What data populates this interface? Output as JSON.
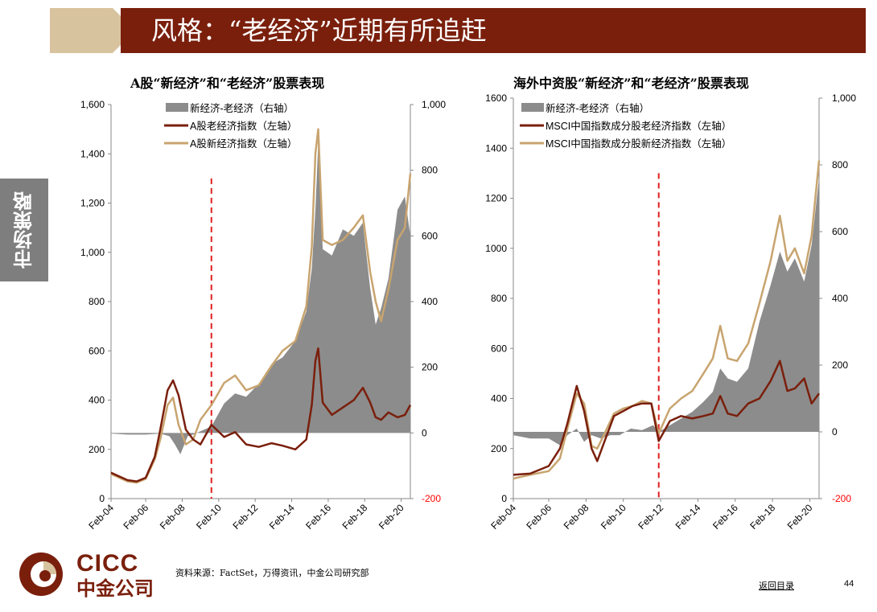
{
  "header": {
    "title": "风格：“老经济”近期有所追赶"
  },
  "sidebar": {
    "label": "市场策略"
  },
  "charts": [
    {
      "title": "A股“新经济”和“老经济”股票表现",
      "legend": [
        "新经济-老经济（右轴）",
        "A股老经济指数（左轴）",
        "A股新经济指数（左轴）"
      ],
      "left_ticks": [
        "1,600",
        "1,400",
        "1,200",
        "1,000",
        "800",
        "600",
        "400",
        "200",
        "0"
      ],
      "right_ticks": [
        "1,000",
        "800",
        "600",
        "400",
        "200",
        "0",
        "-200"
      ],
      "x_ticks": [
        "Feb-04",
        "Feb-06",
        "Feb-08",
        "Feb-10",
        "Feb-12",
        "Feb-14",
        "Feb-16",
        "Feb-18",
        "Feb-20"
      ]
    },
    {
      "title": "海外中资股“新经济”和“老经济”股票表现",
      "legend": [
        "新经济-老经济（右轴）",
        "MSCI中国指数成分股老经济指数（左轴）",
        "MSCI中国指数成分股新经济指数（左轴）"
      ],
      "left_ticks": [
        "1600",
        "1400",
        "1200",
        "1000",
        "800",
        "600",
        "400",
        "200",
        "0"
      ],
      "right_ticks": [
        "1,000",
        "800",
        "600",
        "400",
        "200",
        "0",
        "-200"
      ],
      "x_ticks": [
        "Feb-04",
        "Feb-06",
        "Feb-08",
        "Feb-10",
        "Feb-12",
        "Feb-14",
        "Feb-16",
        "Feb-18",
        "Feb-20"
      ]
    }
  ],
  "chart_data": [
    {
      "type": "line",
      "title": "A股“新经济”和“老经济”股票表现",
      "x_range": [
        2004.1,
        2020.5
      ],
      "ylim_left": [
        0,
        1600
      ],
      "ylim_right": [
        -200,
        1000
      ],
      "vline_x": 2009.6,
      "series": [
        {
          "name": "新经济-老经济（右轴）",
          "axis": "right",
          "kind": "area",
          "x": [
            2004.1,
            2005.0,
            2006.0,
            2006.8,
            2007.3,
            2007.6,
            2007.9,
            2008.3,
            2008.6,
            2009.0,
            2009.6,
            2010.3,
            2010.9,
            2011.5,
            2012.2,
            2012.9,
            2013.5,
            2014.2,
            2014.8,
            2015.1,
            2015.3,
            2015.45,
            2015.7,
            2016.2,
            2016.8,
            2017.4,
            2017.9,
            2018.3,
            2018.6,
            2018.9,
            2019.3,
            2019.8,
            2020.2,
            2020.5
          ],
          "y": [
            -2,
            -5,
            -5,
            -2,
            -10,
            -35,
            -65,
            -10,
            -5,
            5,
            20,
            90,
            120,
            110,
            150,
            210,
            230,
            280,
            370,
            500,
            680,
            880,
            560,
            540,
            620,
            600,
            640,
            440,
            330,
            380,
            470,
            680,
            720,
            600
          ]
        },
        {
          "name": "A股老经济指数（左轴）",
          "axis": "left",
          "kind": "line",
          "x": [
            2004.1,
            2005.0,
            2005.5,
            2006.0,
            2006.5,
            2006.8,
            2007.2,
            2007.5,
            2007.8,
            2008.2,
            2008.6,
            2009.0,
            2009.6,
            2010.3,
            2010.9,
            2011.5,
            2012.2,
            2012.9,
            2013.5,
            2014.2,
            2014.8,
            2015.1,
            2015.3,
            2015.45,
            2015.7,
            2016.2,
            2016.8,
            2017.4,
            2017.9,
            2018.3,
            2018.6,
            2018.9,
            2019.3,
            2019.8,
            2020.2,
            2020.5
          ],
          "y": [
            105,
            75,
            70,
            85,
            170,
            280,
            440,
            480,
            420,
            280,
            240,
            220,
            300,
            250,
            270,
            220,
            210,
            225,
            215,
            200,
            240,
            380,
            560,
            610,
            390,
            340,
            370,
            400,
            450,
            390,
            330,
            320,
            350,
            330,
            340,
            380
          ]
        },
        {
          "name": "A股新经济指数（左轴）",
          "axis": "left",
          "kind": "line",
          "x": [
            2004.1,
            2005.0,
            2005.5,
            2006.0,
            2006.5,
            2006.8,
            2007.2,
            2007.5,
            2007.8,
            2008.2,
            2008.6,
            2009.0,
            2009.6,
            2010.3,
            2010.9,
            2011.5,
            2012.2,
            2012.9,
            2013.5,
            2014.2,
            2014.8,
            2015.1,
            2015.3,
            2015.45,
            2015.7,
            2016.2,
            2016.8,
            2017.4,
            2017.9,
            2018.3,
            2018.6,
            2018.9,
            2019.3,
            2019.8,
            2020.2,
            2020.5
          ],
          "y": [
            100,
            70,
            65,
            80,
            160,
            240,
            380,
            410,
            300,
            220,
            240,
            320,
            380,
            470,
            500,
            440,
            460,
            540,
            600,
            640,
            780,
            1020,
            1400,
            1500,
            1050,
            1030,
            1050,
            1100,
            1150,
            920,
            800,
            720,
            850,
            1050,
            1100,
            1320
          ]
        }
      ]
    },
    {
      "type": "line",
      "title": "海外中资股“新经济”和“老经济”股票表现",
      "x_range": [
        2004.1,
        2020.5
      ],
      "ylim_left": [
        0,
        1600
      ],
      "ylim_right": [
        -200,
        1000
      ],
      "vline_x": 2011.9,
      "series": [
        {
          "name": "新经济-老经济（右轴）",
          "axis": "right",
          "kind": "area",
          "x": [
            2004.1,
            2005.0,
            2006.0,
            2006.6,
            2007.0,
            2007.5,
            2007.9,
            2008.3,
            2008.8,
            2009.3,
            2009.8,
            2010.4,
            2011.0,
            2011.6,
            2011.9,
            2012.5,
            2013.1,
            2013.7,
            2014.3,
            2014.8,
            2015.2,
            2015.6,
            2016.1,
            2016.7,
            2017.3,
            2017.9,
            2018.4,
            2018.8,
            2019.2,
            2019.7,
            2020.1,
            2020.5
          ],
          "y": [
            -10,
            -20,
            -20,
            -40,
            -10,
            10,
            -30,
            -10,
            -20,
            -10,
            -10,
            10,
            5,
            20,
            0,
            20,
            40,
            60,
            90,
            120,
            190,
            160,
            150,
            190,
            330,
            440,
            540,
            480,
            520,
            450,
            560,
            760
          ]
        },
        {
          "name": "MSCI中国指数成分股老经济指数（左轴）",
          "axis": "left",
          "kind": "line",
          "x": [
            2004.1,
            2005.0,
            2006.0,
            2006.6,
            2007.0,
            2007.5,
            2007.9,
            2008.3,
            2008.6,
            2009.0,
            2009.5,
            2010.0,
            2010.5,
            2011.0,
            2011.5,
            2011.9,
            2012.5,
            2013.1,
            2013.7,
            2014.3,
            2014.8,
            2015.2,
            2015.6,
            2016.1,
            2016.7,
            2017.3,
            2017.9,
            2018.4,
            2018.8,
            2019.2,
            2019.7,
            2020.1,
            2020.5
          ],
          "y": [
            95,
            100,
            130,
            200,
            300,
            450,
            350,
            200,
            150,
            230,
            330,
            350,
            370,
            380,
            380,
            230,
            310,
            330,
            320,
            330,
            340,
            410,
            340,
            330,
            380,
            400,
            470,
            550,
            430,
            440,
            480,
            380,
            420
          ]
        },
        {
          "name": "MSCI中国指数成分股新经济指数（左轴）",
          "axis": "left",
          "kind": "line",
          "x": [
            2004.1,
            2005.0,
            2006.0,
            2006.6,
            2007.0,
            2007.5,
            2007.9,
            2008.3,
            2008.6,
            2009.0,
            2009.5,
            2010.0,
            2010.5,
            2011.0,
            2011.5,
            2011.9,
            2012.5,
            2013.1,
            2013.7,
            2014.3,
            2014.8,
            2015.2,
            2015.6,
            2016.1,
            2016.7,
            2017.3,
            2017.9,
            2018.4,
            2018.8,
            2019.2,
            2019.7,
            2020.1,
            2020.5
          ],
          "y": [
            80,
            95,
            110,
            160,
            280,
            420,
            380,
            210,
            200,
            260,
            340,
            360,
            370,
            390,
            380,
            260,
            360,
            400,
            430,
            500,
            560,
            690,
            560,
            550,
            620,
            780,
            950,
            1130,
            950,
            1000,
            900,
            1050,
            1350
          ]
        }
      ]
    }
  ],
  "colors": {
    "header_bg": "#7a1f0c",
    "header_tab": "#d8c39f",
    "sidebar_bg": "#7e7e7e",
    "area": "#8c8c8c",
    "old_line": "#7a1f0c",
    "new_line": "#c8a46f",
    "vline": "#e02020",
    "neg_tick": "#ff0000"
  },
  "footer": {
    "logo_en": "CICC",
    "logo_cn": "中金公司",
    "source": "资料来源：FactSet，万得资讯，中金公司研究部",
    "back_link": "返回目录",
    "page_number": "44"
  }
}
